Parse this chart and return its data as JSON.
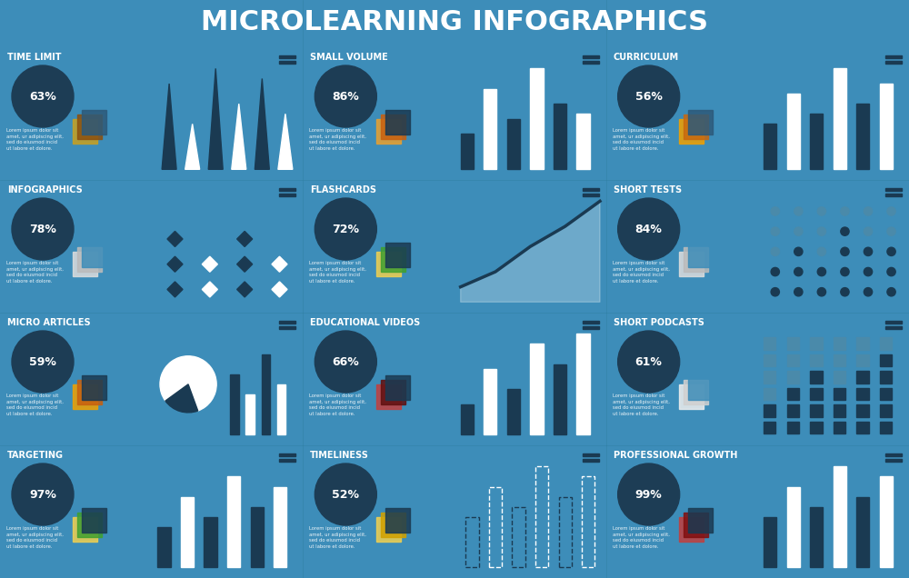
{
  "title": "MICROLEARNING INFOGRAPHICS",
  "bg_color": "#3d8db9",
  "dark_color": "#1a3a52",
  "white": "#ffffff",
  "badge_color": "#1d3d55",
  "mid_blue": "#4a8aaa",
  "lorem": "Lorem ipsum dolor sit\namet, ur adipiscing elit,\nsed do eiusmod incid\nut labore et dolore.",
  "sections": [
    {
      "title": "TIME LIMIT",
      "pct": "63%",
      "row": 0,
      "col": 0,
      "chart_type": "spike",
      "bars": [
        0.85,
        0.45,
        1.0,
        0.65,
        0.9,
        0.55
      ]
    },
    {
      "title": "SMALL VOLUME",
      "pct": "86%",
      "row": 0,
      "col": 1,
      "chart_type": "bar2",
      "bars": [
        0.35,
        0.8,
        0.5,
        1.0,
        0.65,
        0.55
      ]
    },
    {
      "title": "CURRICULUM",
      "pct": "56%",
      "row": 0,
      "col": 2,
      "chart_type": "bar2",
      "bars": [
        0.45,
        0.75,
        0.55,
        1.0,
        0.65,
        0.85
      ]
    },
    {
      "title": "INFOGRAPHICS",
      "pct": "78%",
      "row": 1,
      "col": 0,
      "chart_type": "diamond",
      "bars": [
        0.7,
        0.5,
        0.8,
        0.6,
        0.9,
        0.7
      ]
    },
    {
      "title": "FLASHCARDS",
      "pct": "72%",
      "row": 1,
      "col": 1,
      "chart_type": "area",
      "bars": [
        0.15,
        0.3,
        0.55,
        0.75,
        1.0
      ]
    },
    {
      "title": "SHORT TESTS",
      "pct": "84%",
      "row": 1,
      "col": 2,
      "chart_type": "dotcol",
      "bars": [
        0.4,
        0.6,
        0.5,
        0.8,
        0.6,
        0.7
      ]
    },
    {
      "title": "MICRO ARTICLES",
      "pct": "59%",
      "row": 2,
      "col": 0,
      "chart_type": "pie_bar",
      "bars": [
        0.6,
        0.4,
        0.8,
        0.5,
        0.9,
        0.7
      ]
    },
    {
      "title": "EDUCATIONAL VIDEOS",
      "pct": "66%",
      "row": 2,
      "col": 1,
      "chart_type": "bar2",
      "bars": [
        0.3,
        0.65,
        0.45,
        0.9,
        0.7,
        1.0
      ]
    },
    {
      "title": "SHORT PODCASTS",
      "pct": "61%",
      "row": 2,
      "col": 2,
      "chart_type": "equalizer",
      "bars": [
        0.4,
        0.6,
        0.8,
        0.5,
        0.7,
        0.9
      ]
    },
    {
      "title": "TARGETING",
      "pct": "97%",
      "row": 3,
      "col": 0,
      "chart_type": "bar2",
      "bars": [
        0.4,
        0.7,
        0.5,
        0.9,
        0.6,
        0.8
      ]
    },
    {
      "title": "TIMELINESS",
      "pct": "52%",
      "row": 3,
      "col": 1,
      "chart_type": "dottedbar",
      "bars": [
        0.5,
        0.8,
        0.6,
        1.0,
        0.7,
        0.9
      ]
    },
    {
      "title": "PROFESSIONAL GROWTH",
      "pct": "99%",
      "row": 3,
      "col": 2,
      "chart_type": "bar2",
      "bars": [
        0.5,
        0.8,
        0.6,
        1.0,
        0.7,
        0.9
      ]
    }
  ]
}
